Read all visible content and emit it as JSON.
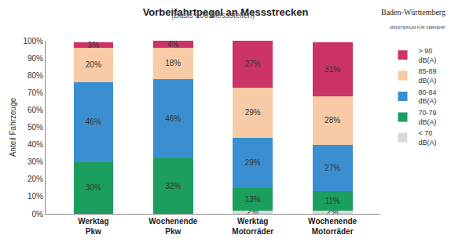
{
  "chart_data": {
    "type": "bar",
    "title": "Vorbeifahrtpegel an Messstrecken",
    "subtitle": "(Basis 100 Messstellen)",
    "annotations": [
      "Baden-Württemberg",
      "MINISTERIUM FÜR VERKEHR"
    ],
    "y_label": "Anteil Fahrzeuge",
    "categories": [
      "Werktag Pkw",
      "Wochenende Pkw",
      "Werktag Motorräder",
      "Wochenende Motorräder"
    ],
    "stacked": true,
    "data_labels": true,
    "grid": false,
    "legend": "right",
    "ylim": [
      0,
      100
    ],
    "yticks": [
      {
        "value": 0,
        "label": "0%"
      },
      {
        "value": 10,
        "label": "10%"
      },
      {
        "value": 20,
        "label": "20%"
      },
      {
        "value": 30,
        "label": "30%"
      },
      {
        "value": 40,
        "label": "40%"
      },
      {
        "value": 50,
        "label": "50%"
      },
      {
        "value": 60,
        "label": "60%"
      },
      {
        "value": 70,
        "label": "70%"
      },
      {
        "value": 80,
        "label": "80%"
      },
      {
        "value": 90,
        "label": "90%"
      },
      {
        "value": 100,
        "label": "100%"
      }
    ],
    "series": [
      {
        "name": "< 70 dB(A)",
        "color": "#d9d9d9",
        "values": [
          0,
          0,
          2,
          2
        ],
        "value_labels": [
          null,
          null,
          "2%",
          "2%"
        ]
      },
      {
        "name": "70-79 dB(A)",
        "color": "#1b9e5e",
        "values": [
          30,
          32,
          13,
          11
        ],
        "value_labels": [
          "30%",
          "32%",
          "13%",
          "11%"
        ]
      },
      {
        "name": "80-84 dB(A)",
        "color": "#3b8fd0",
        "values": [
          46,
          46,
          29,
          27
        ],
        "value_labels": [
          "46%",
          "46%",
          "29%",
          "27%"
        ]
      },
      {
        "name": "85-89 dB(A)",
        "color": "#f8caa6",
        "values": [
          20,
          18,
          29,
          28
        ],
        "value_labels": [
          "20%",
          "18%",
          "29%",
          "28%"
        ]
      },
      {
        "name": "> 90 dB(A)",
        "color": "#cc3366",
        "values": [
          3,
          4,
          27,
          31
        ],
        "value_labels": [
          "3%",
          "4%",
          "27%",
          "31%"
        ]
      }
    ]
  }
}
